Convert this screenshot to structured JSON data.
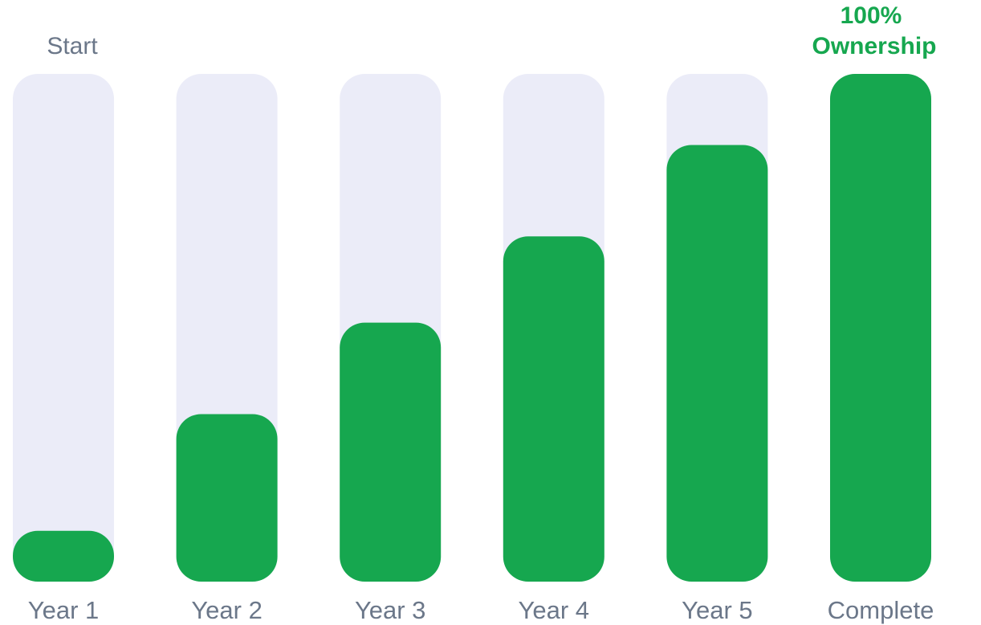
{
  "chart_data": {
    "type": "bar",
    "categories": [
      "Year 1",
      "Year 2",
      "Year 3",
      "Year 4",
      "Year 5",
      "Complete"
    ],
    "values": [
      10,
      33,
      51,
      68,
      86,
      100
    ],
    "ylim": [
      0,
      100
    ],
    "title": "",
    "xlabel": "",
    "ylabel": "",
    "grid": false,
    "legend": "none",
    "start_label": "Start",
    "final_label_line1": "100%",
    "final_label_line2": "Ownership",
    "colors": {
      "track": "#ebecf8",
      "fill": "#16a74f",
      "label": "#6b7789",
      "final_label": "#16a74f"
    }
  }
}
